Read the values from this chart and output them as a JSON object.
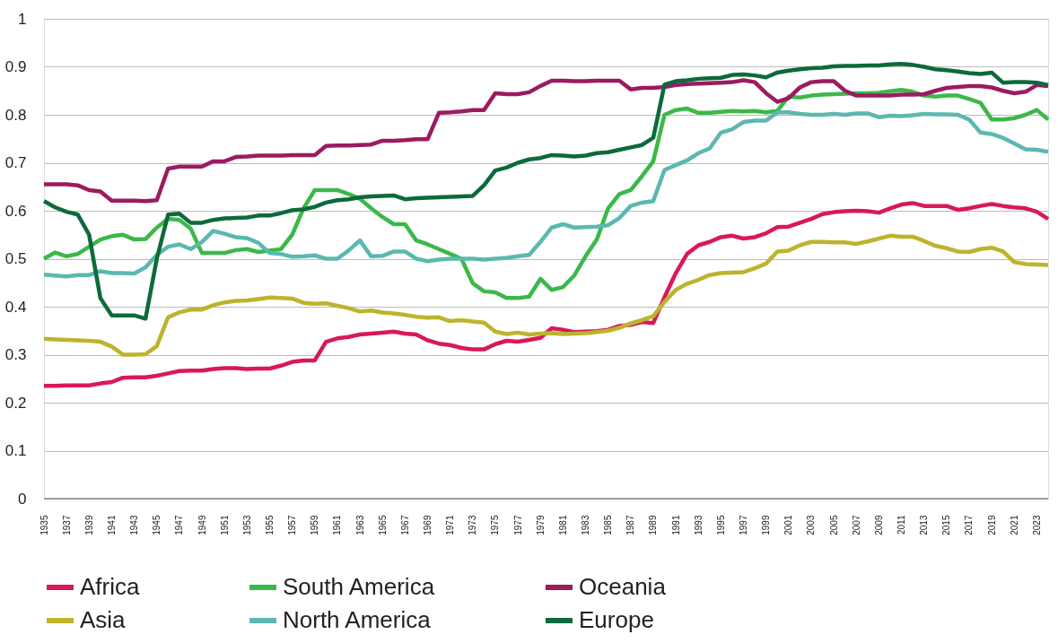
{
  "chart_data": {
    "type": "line",
    "x": [
      1935,
      1936,
      1937,
      1938,
      1939,
      1940,
      1941,
      1942,
      1943,
      1944,
      1945,
      1946,
      1947,
      1948,
      1949,
      1950,
      1951,
      1952,
      1953,
      1954,
      1955,
      1956,
      1957,
      1958,
      1959,
      1960,
      1961,
      1962,
      1963,
      1964,
      1965,
      1966,
      1967,
      1968,
      1969,
      1970,
      1971,
      1972,
      1973,
      1974,
      1975,
      1976,
      1977,
      1978,
      1979,
      1980,
      1981,
      1982,
      1983,
      1984,
      1985,
      1986,
      1987,
      1988,
      1989,
      1990,
      1991,
      1992,
      1993,
      1994,
      1995,
      1996,
      1997,
      1998,
      1999,
      2000,
      2001,
      2002,
      2003,
      2004,
      2005,
      2006,
      2007,
      2008,
      2009,
      2010,
      2011,
      2012,
      2013,
      2014,
      2015,
      2016,
      2017,
      2018,
      2019,
      2020,
      2021,
      2022,
      2023,
      2024
    ],
    "xlim": [
      1935,
      2024
    ],
    "xticks": [
      1935,
      1937,
      1939,
      1941,
      1943,
      1945,
      1947,
      1949,
      1951,
      1953,
      1955,
      1957,
      1959,
      1961,
      1963,
      1965,
      1967,
      1969,
      1971,
      1973,
      1975,
      1977,
      1979,
      1981,
      1983,
      1985,
      1987,
      1989,
      1991,
      1993,
      1995,
      1997,
      1999,
      2001,
      2003,
      2005,
      2007,
      2009,
      2011,
      2013,
      2015,
      2017,
      2019,
      2021,
      2023
    ],
    "ylim": [
      0,
      1
    ],
    "yticks": [
      0,
      0.1,
      0.2,
      0.3,
      0.4,
      0.5,
      0.6,
      0.7,
      0.8,
      0.9,
      1
    ],
    "grid": "y",
    "legend": "bottom",
    "series": [
      {
        "name": "Africa",
        "color": "#d9185b",
        "values": [
          0.235,
          0.235,
          0.236,
          0.236,
          0.236,
          0.24,
          0.243,
          0.252,
          0.253,
          0.253,
          0.256,
          0.261,
          0.266,
          0.267,
          0.267,
          0.27,
          0.272,
          0.272,
          0.27,
          0.271,
          0.271,
          0.277,
          0.285,
          0.288,
          0.288,
          0.327,
          0.334,
          0.337,
          0.342,
          0.344,
          0.346,
          0.348,
          0.344,
          0.342,
          0.33,
          0.323,
          0.32,
          0.314,
          0.311,
          0.311,
          0.322,
          0.329,
          0.327,
          0.331,
          0.335,
          0.355,
          0.352,
          0.347,
          0.348,
          0.349,
          0.352,
          0.36,
          0.362,
          0.368,
          0.366,
          0.42,
          0.47,
          0.51,
          0.528,
          0.535,
          0.545,
          0.548,
          0.542,
          0.545,
          0.553,
          0.566,
          0.567,
          0.575,
          0.583,
          0.593,
          0.597,
          0.599,
          0.6,
          0.599,
          0.596,
          0.605,
          0.613,
          0.616,
          0.61,
          0.61,
          0.61,
          0.602,
          0.605,
          0.61,
          0.614,
          0.61,
          0.607,
          0.605,
          0.598,
          0.583
        ]
      },
      {
        "name": "South America",
        "color": "#3cb84a",
        "values": [
          0.5,
          0.513,
          0.505,
          0.51,
          0.525,
          0.54,
          0.547,
          0.55,
          0.54,
          0.541,
          0.565,
          0.583,
          0.581,
          0.563,
          0.512,
          0.512,
          0.512,
          0.518,
          0.52,
          0.514,
          0.517,
          0.52,
          0.55,
          0.605,
          0.643,
          0.643,
          0.643,
          0.635,
          0.625,
          0.605,
          0.587,
          0.572,
          0.572,
          0.538,
          0.53,
          0.52,
          0.51,
          0.5,
          0.449,
          0.432,
          0.43,
          0.418,
          0.418,
          0.421,
          0.458,
          0.435,
          0.441,
          0.465,
          0.505,
          0.54,
          0.605,
          0.635,
          0.643,
          0.672,
          0.703,
          0.8,
          0.81,
          0.813,
          0.804,
          0.804,
          0.806,
          0.808,
          0.807,
          0.808,
          0.805,
          0.808,
          0.838,
          0.836,
          0.84,
          0.842,
          0.843,
          0.844,
          0.845,
          0.845,
          0.846,
          0.849,
          0.852,
          0.848,
          0.84,
          0.838,
          0.84,
          0.84,
          0.833,
          0.825,
          0.79,
          0.79,
          0.793,
          0.8,
          0.81,
          0.79
        ]
      },
      {
        "name": "Oceania",
        "color": "#9c1b60",
        "values": [
          0.655,
          0.655,
          0.655,
          0.653,
          0.643,
          0.64,
          0.621,
          0.621,
          0.621,
          0.62,
          0.622,
          0.688,
          0.692,
          0.692,
          0.692,
          0.703,
          0.703,
          0.712,
          0.713,
          0.715,
          0.715,
          0.715,
          0.716,
          0.716,
          0.716,
          0.735,
          0.736,
          0.736,
          0.737,
          0.738,
          0.746,
          0.746,
          0.747,
          0.749,
          0.749,
          0.804,
          0.805,
          0.807,
          0.81,
          0.81,
          0.845,
          0.843,
          0.843,
          0.847,
          0.86,
          0.871,
          0.871,
          0.87,
          0.87,
          0.871,
          0.871,
          0.871,
          0.853,
          0.856,
          0.856,
          0.858,
          0.862,
          0.864,
          0.865,
          0.866,
          0.867,
          0.868,
          0.872,
          0.868,
          0.845,
          0.827,
          0.835,
          0.857,
          0.868,
          0.87,
          0.87,
          0.85,
          0.84,
          0.84,
          0.84,
          0.84,
          0.842,
          0.842,
          0.843,
          0.85,
          0.856,
          0.858,
          0.86,
          0.86,
          0.857,
          0.85,
          0.845,
          0.848,
          0.862,
          0.86
        ]
      },
      {
        "name": "Asia",
        "color": "#bcb42c",
        "values": [
          0.333,
          0.332,
          0.331,
          0.33,
          0.329,
          0.327,
          0.317,
          0.3,
          0.3,
          0.301,
          0.318,
          0.378,
          0.388,
          0.394,
          0.394,
          0.403,
          0.409,
          0.412,
          0.413,
          0.416,
          0.419,
          0.418,
          0.417,
          0.408,
          0.406,
          0.407,
          0.402,
          0.397,
          0.39,
          0.392,
          0.388,
          0.386,
          0.383,
          0.379,
          0.377,
          0.378,
          0.37,
          0.372,
          0.369,
          0.367,
          0.348,
          0.343,
          0.346,
          0.342,
          0.344,
          0.345,
          0.343,
          0.344,
          0.345,
          0.347,
          0.35,
          0.356,
          0.365,
          0.372,
          0.38,
          0.41,
          0.435,
          0.448,
          0.456,
          0.466,
          0.47,
          0.471,
          0.472,
          0.48,
          0.49,
          0.515,
          0.517,
          0.528,
          0.535,
          0.535,
          0.534,
          0.534,
          0.531,
          0.536,
          0.542,
          0.548,
          0.546,
          0.546,
          0.537,
          0.527,
          0.522,
          0.515,
          0.514,
          0.52,
          0.523,
          0.515,
          0.493,
          0.489,
          0.488,
          0.487
        ]
      },
      {
        "name": "North America",
        "color": "#5bb8b0",
        "values": [
          0.467,
          0.465,
          0.463,
          0.466,
          0.466,
          0.474,
          0.47,
          0.47,
          0.469,
          0.482,
          0.508,
          0.525,
          0.53,
          0.52,
          0.535,
          0.558,
          0.552,
          0.545,
          0.543,
          0.533,
          0.512,
          0.51,
          0.504,
          0.505,
          0.507,
          0.5,
          0.5,
          0.517,
          0.538,
          0.505,
          0.506,
          0.515,
          0.515,
          0.5,
          0.495,
          0.498,
          0.5,
          0.5,
          0.5,
          0.498,
          0.5,
          0.502,
          0.505,
          0.508,
          0.535,
          0.565,
          0.572,
          0.565,
          0.566,
          0.567,
          0.57,
          0.585,
          0.61,
          0.617,
          0.62,
          0.685,
          0.695,
          0.705,
          0.72,
          0.73,
          0.763,
          0.77,
          0.785,
          0.788,
          0.788,
          0.805,
          0.805,
          0.802,
          0.8,
          0.8,
          0.802,
          0.8,
          0.803,
          0.803,
          0.795,
          0.798,
          0.797,
          0.799,
          0.802,
          0.801,
          0.801,
          0.8,
          0.79,
          0.763,
          0.76,
          0.752,
          0.74,
          0.728,
          0.727,
          0.723
        ]
      },
      {
        "name": "Europe",
        "color": "#0d6a3a",
        "values": [
          0.62,
          0.607,
          0.598,
          0.592,
          0.55,
          0.418,
          0.382,
          0.382,
          0.382,
          0.375,
          0.5,
          0.592,
          0.594,
          0.575,
          0.575,
          0.581,
          0.584,
          0.585,
          0.586,
          0.59,
          0.59,
          0.595,
          0.601,
          0.603,
          0.608,
          0.617,
          0.622,
          0.624,
          0.628,
          0.63,
          0.631,
          0.632,
          0.624,
          0.626,
          0.627,
          0.628,
          0.629,
          0.63,
          0.631,
          0.653,
          0.684,
          0.69,
          0.7,
          0.707,
          0.71,
          0.716,
          0.715,
          0.713,
          0.715,
          0.72,
          0.722,
          0.727,
          0.732,
          0.737,
          0.752,
          0.863,
          0.87,
          0.872,
          0.875,
          0.876,
          0.877,
          0.883,
          0.884,
          0.882,
          0.878,
          0.888,
          0.892,
          0.895,
          0.897,
          0.898,
          0.901,
          0.902,
          0.902,
          0.903,
          0.903,
          0.905,
          0.906,
          0.904,
          0.9,
          0.895,
          0.893,
          0.89,
          0.887,
          0.885,
          0.888,
          0.867,
          0.868,
          0.868,
          0.867,
          0.862
        ]
      }
    ]
  }
}
